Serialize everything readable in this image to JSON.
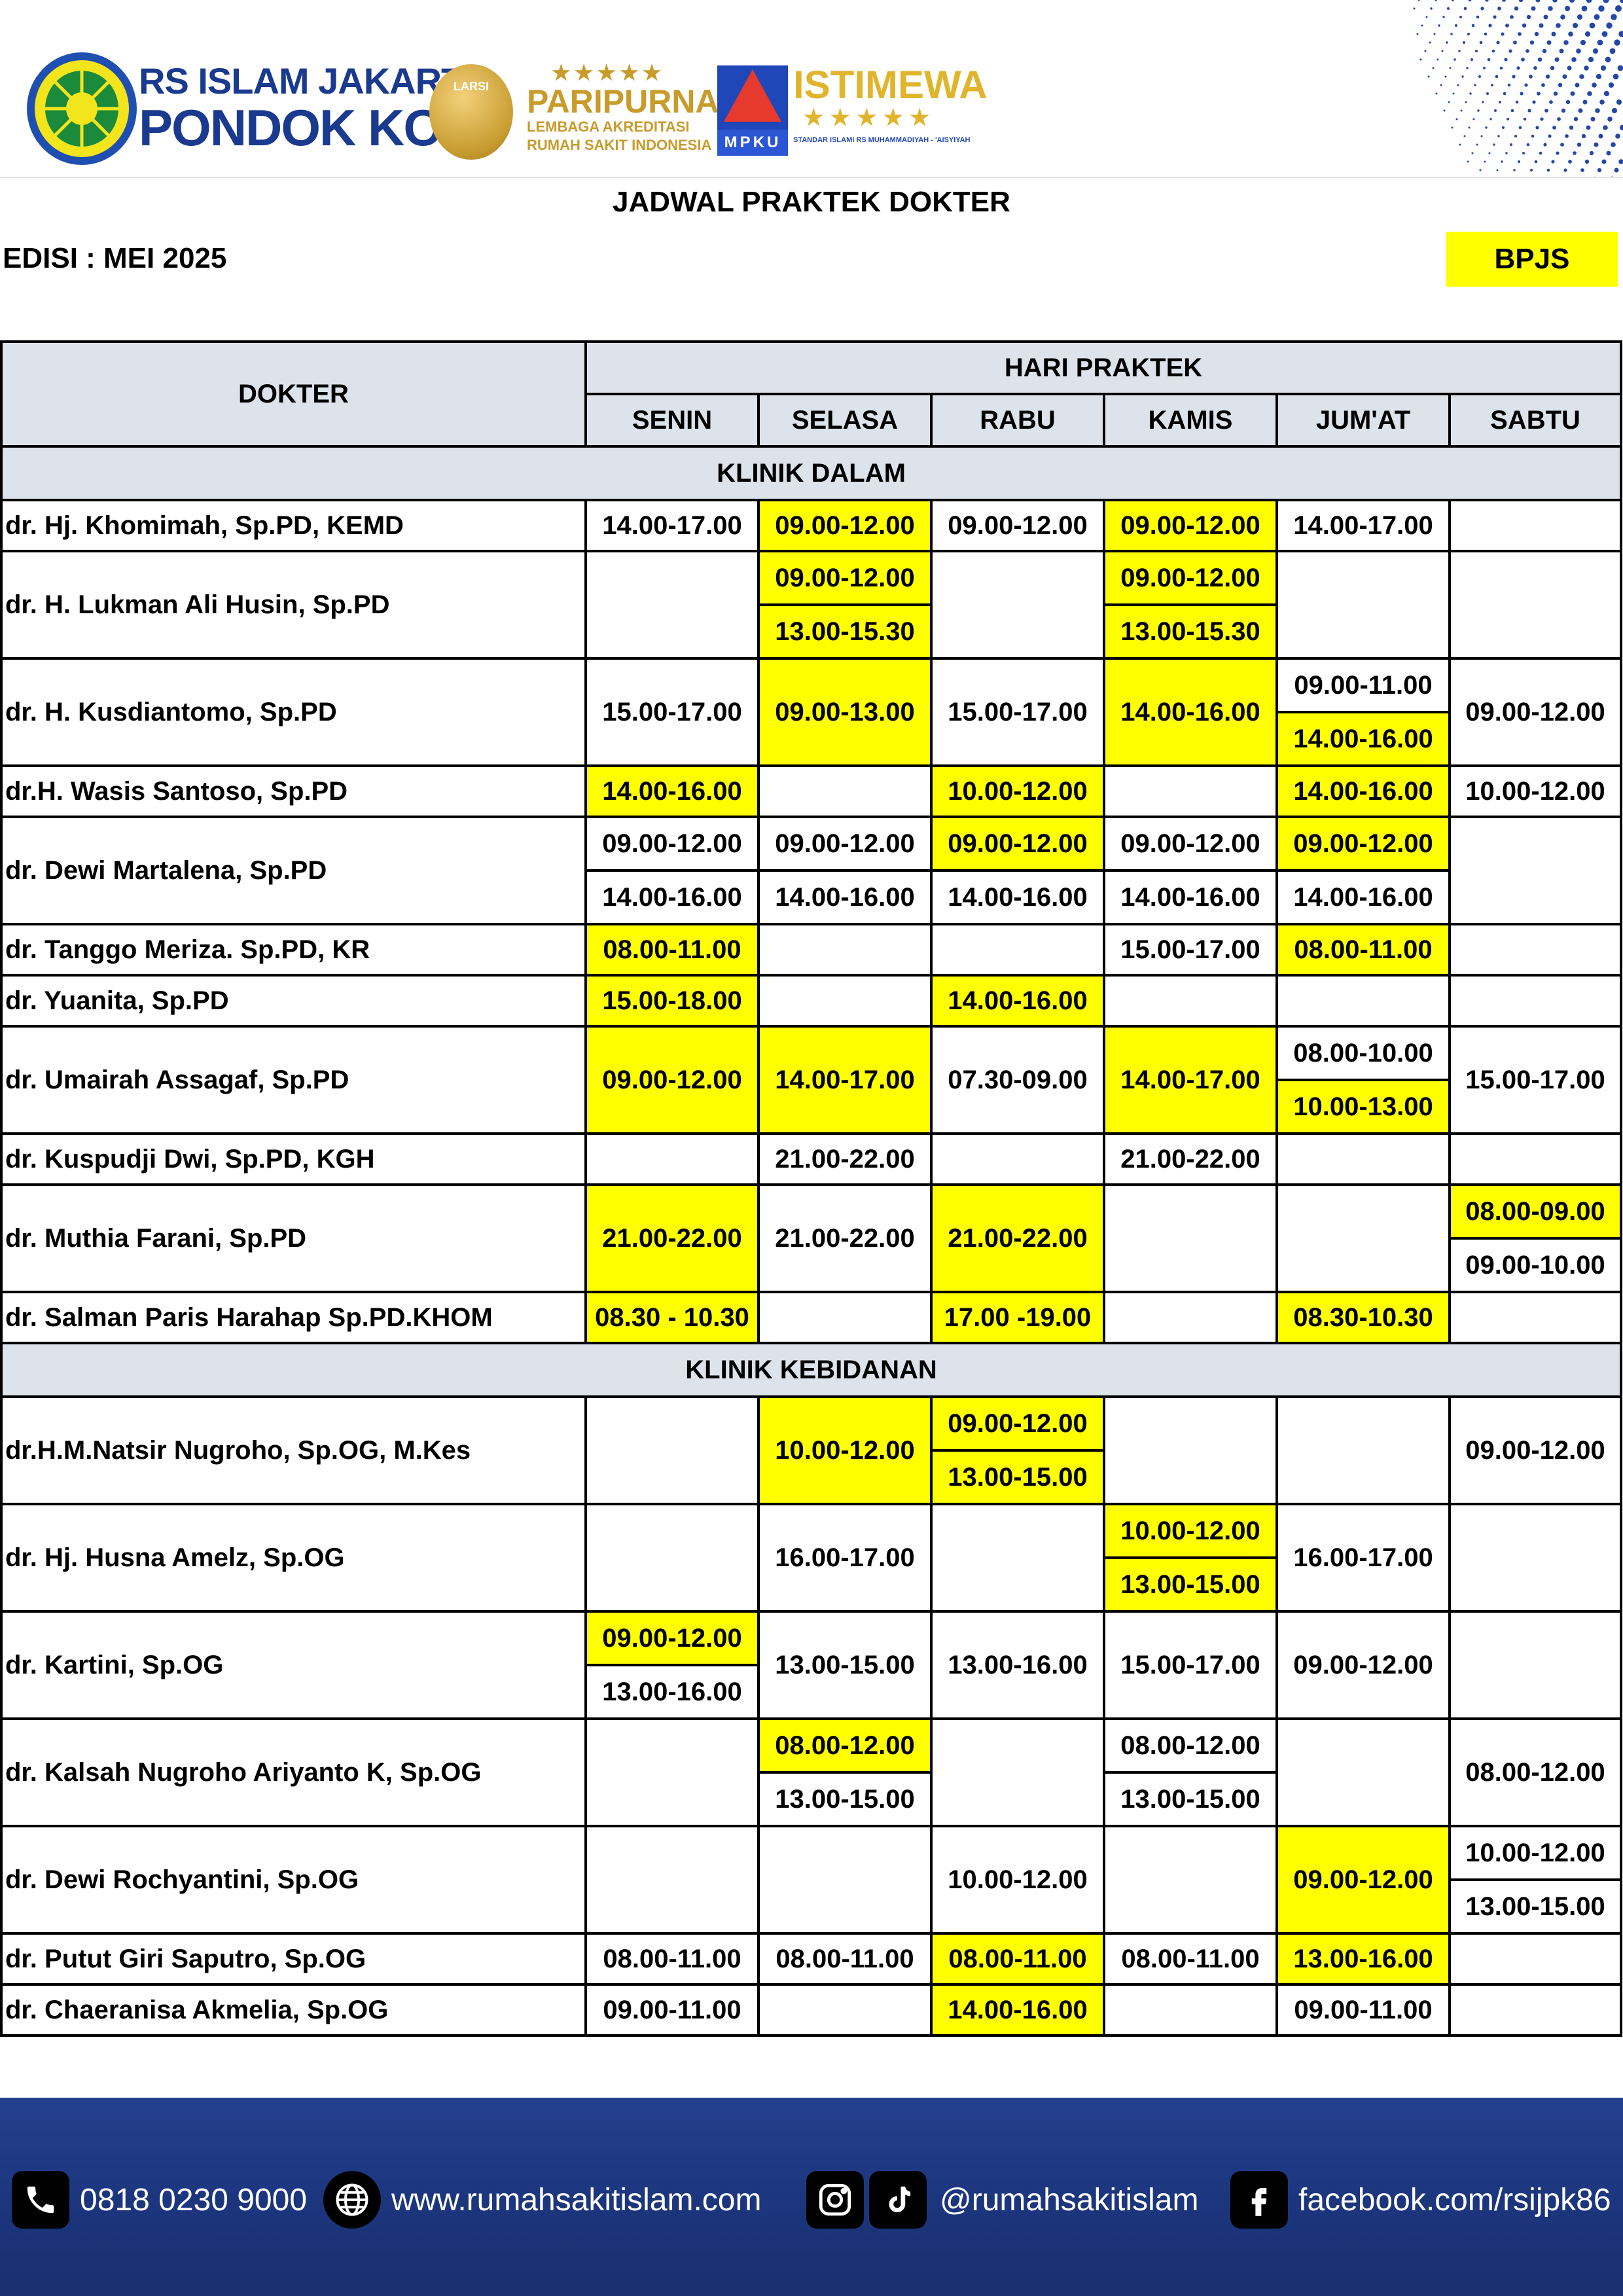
{
  "header": {
    "hospital_line1": "RS ISLAM JAKARTA",
    "hospital_line2": "PONDOK KOPI",
    "larsi_label": "LARSI",
    "paripurna_stars": "★★★★★",
    "paripurna": "PARIPURNA",
    "paripurna_sub1": "LEMBAGA AKREDITASI",
    "paripurna_sub2": "RUMAH SAKIT INDONESIA",
    "sirsma_tag": "MPKU",
    "istimewa": "ISTIMEWA",
    "istimewa_stars": "★★★★★",
    "istimewa_sub": "STANDAR ISLAMI RS MUHAMMADIYAH - 'AISYIYAH"
  },
  "title": "JADWAL PRAKTEK DOKTER",
  "edition": "EDISI : MEI 2025",
  "badge": "BPJS",
  "highlight_color": "#ffff00",
  "header_bg": "#dde3ea",
  "table": {
    "doctor_header": "DOKTER",
    "days_header": "HARI PRAKTEK",
    "days": [
      "SENIN",
      "SELASA",
      "RABU",
      "KAMIS",
      "JUM'AT",
      "SABTU"
    ],
    "sections": [
      {
        "name": "KLINIK DALAM",
        "doctors": [
          {
            "name": "dr. Hj. Khomimah, Sp.PD, KEMD",
            "rows": 1,
            "days": [
              [
                {
                  "t": "14.00-17.00",
                  "h": false
                }
              ],
              [
                {
                  "t": "09.00-12.00",
                  "h": true
                }
              ],
              [
                {
                  "t": "09.00-12.00",
                  "h": false
                }
              ],
              [
                {
                  "t": "09.00-12.00",
                  "h": true
                }
              ],
              [
                {
                  "t": "14.00-17.00",
                  "h": false
                }
              ],
              []
            ]
          },
          {
            "name": "dr. H. Lukman Ali Husin, Sp.PD",
            "rows": 2,
            "days": [
              [],
              [
                {
                  "t": "09.00-12.00",
                  "h": true
                },
                {
                  "t": "13.00-15.30",
                  "h": true
                }
              ],
              [],
              [
                {
                  "t": "09.00-12.00",
                  "h": true
                },
                {
                  "t": "13.00-15.30",
                  "h": true
                }
              ],
              [],
              []
            ]
          },
          {
            "name": "dr. H. Kusdiantomo, Sp.PD",
            "rows": 2,
            "days": [
              [
                {
                  "t": "15.00-17.00",
                  "h": false
                }
              ],
              [
                {
                  "t": "09.00-13.00",
                  "h": true
                }
              ],
              [
                {
                  "t": "15.00-17.00",
                  "h": false
                }
              ],
              [
                {
                  "t": "14.00-16.00",
                  "h": true
                }
              ],
              [
                {
                  "t": "09.00-11.00",
                  "h": false
                },
                {
                  "t": "14.00-16.00",
                  "h": true
                }
              ],
              [
                {
                  "t": "09.00-12.00",
                  "h": false
                }
              ]
            ]
          },
          {
            "name": "dr.H. Wasis Santoso, Sp.PD",
            "rows": 1,
            "days": [
              [
                {
                  "t": "14.00-16.00",
                  "h": true
                }
              ],
              [],
              [
                {
                  "t": "10.00-12.00",
                  "h": true
                }
              ],
              [],
              [
                {
                  "t": "14.00-16.00",
                  "h": true
                }
              ],
              [
                {
                  "t": "10.00-12.00",
                  "h": false
                }
              ]
            ]
          },
          {
            "name": "dr. Dewi Martalena, Sp.PD",
            "rows": 2,
            "days": [
              [
                {
                  "t": "09.00-12.00",
                  "h": false
                },
                {
                  "t": "14.00-16.00",
                  "h": false
                }
              ],
              [
                {
                  "t": "09.00-12.00",
                  "h": false
                },
                {
                  "t": "14.00-16.00",
                  "h": false
                }
              ],
              [
                {
                  "t": "09.00-12.00",
                  "h": true
                },
                {
                  "t": "14.00-16.00",
                  "h": false
                }
              ],
              [
                {
                  "t": "09.00-12.00",
                  "h": false
                },
                {
                  "t": "14.00-16.00",
                  "h": false
                }
              ],
              [
                {
                  "t": "09.00-12.00",
                  "h": true
                },
                {
                  "t": "14.00-16.00",
                  "h": false
                }
              ],
              []
            ]
          },
          {
            "name": "dr. Tanggo Meriza. Sp.PD, KR",
            "rows": 1,
            "days": [
              [
                {
                  "t": "08.00-11.00",
                  "h": true
                }
              ],
              [],
              [],
              [
                {
                  "t": "15.00-17.00",
                  "h": false
                }
              ],
              [
                {
                  "t": "08.00-11.00",
                  "h": true
                }
              ],
              []
            ]
          },
          {
            "name": "dr. Yuanita, Sp.PD",
            "rows": 1,
            "days": [
              [
                {
                  "t": "15.00-18.00",
                  "h": true
                }
              ],
              [],
              [
                {
                  "t": "14.00-16.00",
                  "h": true
                }
              ],
              [],
              [],
              []
            ]
          },
          {
            "name": "dr. Umairah Assagaf, Sp.PD",
            "rows": 2,
            "days": [
              [
                {
                  "t": "09.00-12.00",
                  "h": true
                }
              ],
              [
                {
                  "t": "14.00-17.00",
                  "h": true
                }
              ],
              [
                {
                  "t": "07.30-09.00",
                  "h": false
                }
              ],
              [
                {
                  "t": "14.00-17.00",
                  "h": true
                }
              ],
              [
                {
                  "t": "08.00-10.00",
                  "h": false
                },
                {
                  "t": "10.00-13.00",
                  "h": true
                }
              ],
              [
                {
                  "t": "15.00-17.00",
                  "h": false
                }
              ]
            ]
          },
          {
            "name": "dr. Kuspudji Dwi, Sp.PD, KGH",
            "rows": 1,
            "days": [
              [],
              [
                {
                  "t": "21.00-22.00",
                  "h": false
                }
              ],
              [],
              [
                {
                  "t": "21.00-22.00",
                  "h": false
                }
              ],
              [],
              []
            ]
          },
          {
            "name": "dr. Muthia Farani, Sp.PD",
            "rows": 2,
            "days": [
              [
                {
                  "t": "21.00-22.00",
                  "h": true
                }
              ],
              [
                {
                  "t": "21.00-22.00",
                  "h": false
                }
              ],
              [
                {
                  "t": "21.00-22.00",
                  "h": true
                }
              ],
              [],
              [],
              [
                {
                  "t": "08.00-09.00",
                  "h": true
                },
                {
                  "t": "09.00-10.00",
                  "h": false
                }
              ]
            ]
          },
          {
            "name": "dr. Salman Paris Harahap Sp.PD.KHOM",
            "rows": 1,
            "days": [
              [
                {
                  "t": "08.30 - 10.30",
                  "h": true
                }
              ],
              [],
              [
                {
                  "t": "17.00 -19.00",
                  "h": true
                }
              ],
              [],
              [
                {
                  "t": "08.30-10.30",
                  "h": true
                }
              ],
              []
            ]
          }
        ]
      },
      {
        "name": "KLINIK KEBIDANAN",
        "doctors": [
          {
            "name": "dr.H.M.Natsir Nugroho, Sp.OG, M.Kes",
            "rows": 2,
            "days": [
              [],
              [
                {
                  "t": "10.00-12.00",
                  "h": true
                }
              ],
              [
                {
                  "t": "09.00-12.00",
                  "h": true
                },
                {
                  "t": "13.00-15.00",
                  "h": true
                }
              ],
              [],
              [],
              [
                {
                  "t": "09.00-12.00",
                  "h": false
                }
              ]
            ]
          },
          {
            "name": "dr. Hj. Husna Amelz, Sp.OG",
            "rows": 2,
            "days": [
              [],
              [
                {
                  "t": "16.00-17.00",
                  "h": false
                }
              ],
              [],
              [
                {
                  "t": "10.00-12.00",
                  "h": true
                },
                {
                  "t": "13.00-15.00",
                  "h": true
                }
              ],
              [
                {
                  "t": "16.00-17.00",
                  "h": false
                }
              ],
              []
            ]
          },
          {
            "name": "dr. Kartini, Sp.OG",
            "rows": 2,
            "days": [
              [
                {
                  "t": "09.00-12.00",
                  "h": true
                },
                {
                  "t": "13.00-16.00",
                  "h": false
                }
              ],
              [
                {
                  "t": "13.00-15.00",
                  "h": false
                }
              ],
              [
                {
                  "t": "13.00-16.00",
                  "h": false
                }
              ],
              [
                {
                  "t": "15.00-17.00",
                  "h": false
                }
              ],
              [
                {
                  "t": "09.00-12.00",
                  "h": false
                }
              ],
              []
            ]
          },
          {
            "name": "dr. Kalsah Nugroho Ariyanto K, Sp.OG",
            "rows": 2,
            "days": [
              [],
              [
                {
                  "t": "08.00-12.00",
                  "h": true
                },
                {
                  "t": "13.00-15.00",
                  "h": false
                }
              ],
              [],
              [
                {
                  "t": "08.00-12.00",
                  "h": false
                },
                {
                  "t": "13.00-15.00",
                  "h": false
                }
              ],
              [],
              [
                {
                  "t": "08.00-12.00",
                  "h": false
                }
              ]
            ]
          },
          {
            "name": "dr. Dewi Rochyantini, Sp.OG",
            "rows": 2,
            "days": [
              [],
              [],
              [
                {
                  "t": "10.00-12.00",
                  "h": false
                }
              ],
              [],
              [
                {
                  "t": "09.00-12.00",
                  "h": true
                }
              ],
              [
                {
                  "t": "10.00-12.00",
                  "h": false
                },
                {
                  "t": "13.00-15.00",
                  "h": false
                }
              ]
            ]
          },
          {
            "name": "dr. Putut Giri Saputro, Sp.OG",
            "rows": 1,
            "days": [
              [
                {
                  "t": "08.00-11.00",
                  "h": false
                }
              ],
              [
                {
                  "t": "08.00-11.00",
                  "h": false
                }
              ],
              [
                {
                  "t": "08.00-11.00",
                  "h": true
                }
              ],
              [
                {
                  "t": "08.00-11.00",
                  "h": false
                }
              ],
              [
                {
                  "t": "13.00-16.00",
                  "h": true
                }
              ],
              []
            ]
          },
          {
            "name": "dr. Chaeranisa Akmelia, Sp.OG",
            "rows": 1,
            "days": [
              [
                {
                  "t": "09.00-11.00",
                  "h": false
                }
              ],
              [],
              [
                {
                  "t": "14.00-16.00",
                  "h": true
                }
              ],
              [],
              [
                {
                  "t": "09.00-11.00",
                  "h": false
                }
              ],
              []
            ]
          }
        ]
      }
    ]
  },
  "footer": {
    "phone_icon": "phone-icon",
    "phone": "0818 0230 9000",
    "web_icon": "globe-icon",
    "website": "www.rumahsakitislam.com",
    "social_icons": [
      "instagram-icon",
      "tiktok-icon"
    ],
    "social": "@rumahsakitislam",
    "facebook_icon": "facebook-icon",
    "facebook": "facebook.com/rsijpk86"
  }
}
